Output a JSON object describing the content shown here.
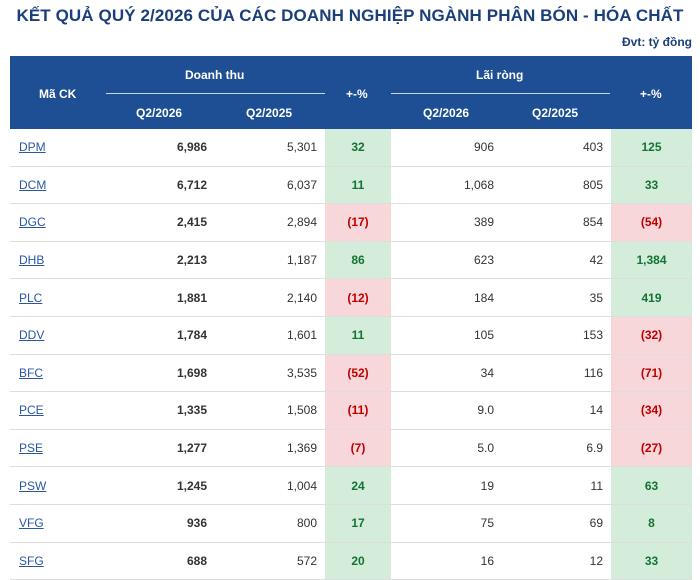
{
  "title": "KẾT QUẢ QUÝ 2/2026 CỦA CÁC DOANH NGHIỆP NGÀNH PHÂN BÓN - HÓA CHẤT",
  "unit": "Đvt: tỷ đồng",
  "header": {
    "ticker": "Mã CK",
    "revenue": "Doanh thu",
    "profit": "Lãi ròng",
    "q2_2026": "Q2/2026",
    "q2_2025": "Q2/2025",
    "change": "+-%"
  },
  "colors": {
    "header_bg": "#1e4f94",
    "positive_bg": "#d4edda",
    "negative_bg": "#f8d7da",
    "positive_text": "#137333",
    "negative_text": "#c00000"
  },
  "rows": [
    {
      "ticker": "DPM",
      "rev26": "6,986",
      "rev25": "5,301",
      "rev_chg": "32",
      "rev_sign": "pos",
      "np26": "906",
      "np25": "403",
      "np_chg": "125",
      "np_sign": "pos"
    },
    {
      "ticker": "DCM",
      "rev26": "6,712",
      "rev25": "6,037",
      "rev_chg": "11",
      "rev_sign": "pos",
      "np26": "1,068",
      "np25": "805",
      "np_chg": "33",
      "np_sign": "pos"
    },
    {
      "ticker": "DGC",
      "rev26": "2,415",
      "rev25": "2,894",
      "rev_chg": "(17)",
      "rev_sign": "neg",
      "np26": "389",
      "np25": "854",
      "np_chg": "(54)",
      "np_sign": "neg"
    },
    {
      "ticker": "DHB",
      "rev26": "2,213",
      "rev25": "1,187",
      "rev_chg": "86",
      "rev_sign": "pos",
      "np26": "623",
      "np25": "42",
      "np_chg": "1,384",
      "np_sign": "pos"
    },
    {
      "ticker": "PLC",
      "rev26": "1,881",
      "rev25": "2,140",
      "rev_chg": "(12)",
      "rev_sign": "neg",
      "np26": "184",
      "np25": "35",
      "np_chg": "419",
      "np_sign": "pos"
    },
    {
      "ticker": "DDV",
      "rev26": "1,784",
      "rev25": "1,601",
      "rev_chg": "11",
      "rev_sign": "pos",
      "np26": "105",
      "np25": "153",
      "np_chg": "(32)",
      "np_sign": "neg"
    },
    {
      "ticker": "BFC",
      "rev26": "1,698",
      "rev25": "3,535",
      "rev_chg": "(52)",
      "rev_sign": "neg",
      "np26": "34",
      "np25": "116",
      "np_chg": "(71)",
      "np_sign": "neg"
    },
    {
      "ticker": "PCE",
      "rev26": "1,335",
      "rev25": "1,508",
      "rev_chg": "(11)",
      "rev_sign": "neg",
      "np26": "9.0",
      "np25": "14",
      "np_chg": "(34)",
      "np_sign": "neg"
    },
    {
      "ticker": "PSE",
      "rev26": "1,277",
      "rev25": "1,369",
      "rev_chg": "(7)",
      "rev_sign": "neg",
      "np26": "5.0",
      "np25": "6.9",
      "np_chg": "(27)",
      "np_sign": "neg"
    },
    {
      "ticker": "PSW",
      "rev26": "1,245",
      "rev25": "1,004",
      "rev_chg": "24",
      "rev_sign": "pos",
      "np26": "19",
      "np25": "11",
      "np_chg": "63",
      "np_sign": "pos"
    },
    {
      "ticker": "VFG",
      "rev26": "936",
      "rev25": "800",
      "rev_chg": "17",
      "rev_sign": "pos",
      "np26": "75",
      "np25": "69",
      "np_chg": "8",
      "np_sign": "pos"
    },
    {
      "ticker": "SFG",
      "rev26": "688",
      "rev25": "572",
      "rev_chg": "20",
      "rev_sign": "pos",
      "np26": "16",
      "np25": "12",
      "np_chg": "33",
      "np_sign": "pos"
    }
  ]
}
